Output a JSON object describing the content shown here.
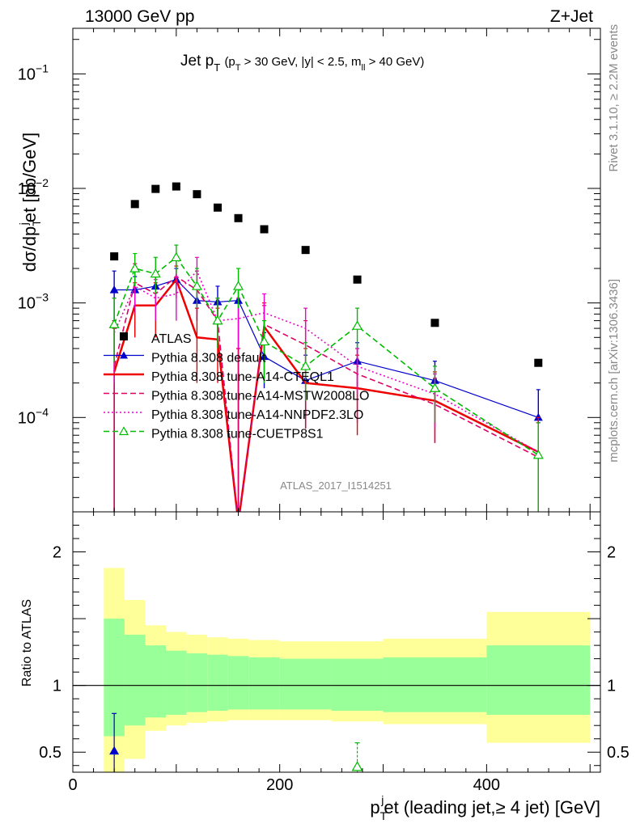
{
  "header": {
    "left": "13000 GeV pp",
    "right": "Z+Jet"
  },
  "side_labels": {
    "rivet": "Rivet 3.1.10, ≥ 2.2M events",
    "mcplots": "mcplots.cern.ch [arXiv:1306.3436]"
  },
  "analysis_id": "ATLAS_2017_I1514251",
  "colors": {
    "data": "#000000",
    "default": "#0000cc",
    "cteql1": "#ee0000",
    "mstw": "#dd0066",
    "nnpdf": "#ee00cc",
    "cuetp8s1": "#00bb00",
    "band_inner": "#99ff99",
    "band_outer": "#ffff99"
  },
  "chart_data": [
    {
      "type": "scatter",
      "title": "Jet p_T (p_T > 30 GeV, |y| < 2.5, m_ll > 40 GeV)",
      "title_parts": {
        "main": "Jet p",
        "main_sub": "T",
        "cut1": "(p",
        "cut1_sub": "T",
        "cut2": " > 30 GeV, |y| < 2.5, m",
        "cut2_sub": "ll",
        "cut3": " > 40 GeV)"
      },
      "ylabel": "dσ/dp_T^j et [pb/GeV]",
      "ylabel_parts": {
        "a": "dσ/dp",
        "sub": "T",
        "sup": "j",
        "b": "et [pb/GeV]"
      },
      "yscale": "log",
      "ylim": [
        1.5e-05,
        0.25
      ],
      "xlim": [
        0,
        510
      ],
      "y_tick_labels": [
        {
          "base": "10",
          "exp": "−1",
          "value": 0.1
        },
        {
          "base": "10",
          "exp": "−2",
          "value": 0.01
        },
        {
          "base": "10",
          "exp": "−3",
          "value": 0.001
        },
        {
          "base": "10",
          "exp": "−4",
          "value": 0.0001
        }
      ],
      "legend_position": "left-middle",
      "series": [
        {
          "key": "data",
          "name": "ATLAS",
          "marker": "square",
          "style": "none",
          "x": [
            40,
            60,
            80,
            100,
            120,
            140,
            160,
            185,
            225,
            275,
            350,
            450
          ],
          "y": [
            0.00255,
            0.0073,
            0.0099,
            0.0104,
            0.0089,
            0.0068,
            0.0055,
            0.0044,
            0.0029,
            0.0016,
            0.00067,
            0.0003
          ]
        },
        {
          "key": "default",
          "name": "Pythia 8.308 default",
          "marker": "triangle-filled",
          "style": "solid",
          "x": [
            40,
            60,
            80,
            100,
            120,
            140,
            160,
            185,
            225,
            275,
            350,
            450
          ],
          "y": [
            0.0013,
            0.0013,
            0.0014,
            0.0016,
            0.00105,
            0.00102,
            0.00105,
            0.00034,
            0.00021,
            0.00031,
            0.00021,
            0.0001
          ],
          "err_up": [
            0.0019,
            0.0017,
            0.0018,
            0.002,
            0.0014,
            0.0014,
            0.0014,
            0.00055,
            0.00035,
            0.00045,
            0.00031,
            0.000175
          ],
          "err_dn": [
            1e-05,
            0.00085,
            0.001,
            0.0012,
            0.0007,
            0.00065,
            1e-05,
            0.00018,
            8e-05,
            0.00018,
            0.00012,
            4.5e-05
          ]
        },
        {
          "key": "cteql1",
          "name": "Pythia 8.308 tune-A14-CTEQL1",
          "marker": "none",
          "style": "solid",
          "x": [
            40,
            60,
            80,
            100,
            120,
            140,
            160,
            185,
            225,
            275,
            350,
            450
          ],
          "y": [
            0.00025,
            0.00095,
            0.00095,
            0.0016,
            0.0005,
            0.00048,
            1.2e-05,
            0.00062,
            0.0002,
            0.00018,
            0.00014,
            5e-05
          ],
          "err_up": [
            0.0006,
            0.0015,
            0.0015,
            0.0021,
            0.0009,
            0.0009,
            0.0004,
            0.001,
            0.0004,
            0.00035,
            0.00025,
            0.0001
          ],
          "err_dn": [
            1e-05,
            0.0005,
            0.0005,
            0.0011,
            0.0002,
            0.0002,
            1e-05,
            0.0003,
            8e-05,
            7e-05,
            6e-05,
            1e-05
          ]
        },
        {
          "key": "mstw",
          "name": "Pythia 8.308 tune-A14-MSTW2008LO",
          "marker": "none",
          "style": "dashed",
          "x": [
            40,
            60,
            80,
            100,
            120,
            140,
            160,
            185,
            225,
            275,
            350,
            450
          ],
          "y": [
            0.00028,
            0.0015,
            0.0012,
            0.0017,
            0.0013,
            0.0007,
            1.2e-05,
            0.00065,
            0.00043,
            0.00024,
            0.00013,
            4.5e-05
          ],
          "err_up": [
            0.0007,
            0.0022,
            0.0018,
            0.0024,
            0.0019,
            0.0011,
            0.0004,
            0.00095,
            0.0007,
            0.0004,
            0.00022,
            9e-05
          ],
          "err_dn": [
            1e-05,
            0.0008,
            0.0007,
            0.0011,
            0.0008,
            0.0004,
            1e-05,
            0.0003,
            0.0002,
            9e-05,
            6e-05,
            1e-05
          ]
        },
        {
          "key": "nnpdf",
          "name": "Pythia 8.308 tune-A14-NNPDF2.3LO",
          "marker": "none",
          "style": "dotted",
          "x": [
            40,
            60,
            80,
            100,
            120,
            140,
            160,
            185,
            225,
            275,
            350,
            450
          ],
          "y": [
            0.00055,
            0.0014,
            0.0011,
            0.0012,
            0.0019,
            0.0007,
            0.00073,
            0.00082,
            0.0006,
            0.00028,
            0.00016,
            5e-05
          ],
          "err_up": [
            0.0011,
            0.0019,
            0.0016,
            0.0017,
            0.0025,
            0.0011,
            0.0011,
            0.0012,
            0.0009,
            0.0004,
            0.00024,
            9e-05
          ],
          "err_dn": [
            0.0002,
            0.0009,
            0.0007,
            0.0007,
            0.0013,
            0.0004,
            0.0004,
            0.0005,
            0.0003,
            0.00016,
            8e-05,
            1e-05
          ]
        },
        {
          "key": "cuetp8s1",
          "name": "Pythia 8.308 tune-CUETP8S1",
          "marker": "triangle-open",
          "style": "dashed",
          "x": [
            40,
            60,
            80,
            100,
            120,
            140,
            160,
            185,
            225,
            275,
            350,
            450
          ],
          "y": [
            0.00065,
            0.002,
            0.0018,
            0.0025,
            0.0014,
            0.0007,
            0.0014,
            0.00046,
            0.00028,
            0.00063,
            0.00018,
            4.7e-05
          ],
          "err_up": [
            0.0011,
            0.0027,
            0.0025,
            0.0032,
            0.002,
            0.0011,
            0.002,
            0.0007,
            0.00045,
            0.0009,
            0.00028,
            9e-05
          ],
          "err_dn": [
            0.0003,
            0.0014,
            0.0012,
            0.0018,
            0.0009,
            0.0004,
            0.0009,
            0.0002,
            0.00014,
            0.0004,
            9e-05,
            1e-05
          ]
        }
      ]
    },
    {
      "type": "scatter",
      "ylabel": "Ratio to ATLAS",
      "xlabel": "p_T^j et (leading jet,≥ 4 jet) [GeV]",
      "xlabel_parts": {
        "a": "p",
        "sub": "T",
        "sup": "j",
        "b": "et (leading jet,≥ 4 jet) [GeV]"
      },
      "xlim": [
        0,
        510
      ],
      "ylim": [
        0.35,
        2.3
      ],
      "x_tick_labels": [
        "0",
        "200",
        "400"
      ],
      "y_tick_labels": [
        "0.5",
        "1",
        "2"
      ],
      "reference_line": 1,
      "bands": {
        "edges": [
          30,
          50,
          70,
          90,
          110,
          130,
          150,
          170,
          200,
          250,
          300,
          400,
          500
        ],
        "inner_hi": [
          1.5,
          1.38,
          1.3,
          1.26,
          1.24,
          1.23,
          1.22,
          1.21,
          1.2,
          1.2,
          1.21,
          1.3
        ],
        "inner_lo": [
          0.62,
          0.7,
          0.76,
          0.78,
          0.8,
          0.81,
          0.82,
          0.82,
          0.82,
          0.81,
          0.8,
          0.78
        ],
        "outer_hi": [
          1.88,
          1.64,
          1.45,
          1.4,
          1.38,
          1.36,
          1.35,
          1.34,
          1.33,
          1.33,
          1.35,
          1.55
        ],
        "outer_lo": [
          0.3,
          0.45,
          0.66,
          0.7,
          0.72,
          0.73,
          0.74,
          0.74,
          0.74,
          0.73,
          0.71,
          0.57
        ]
      },
      "points": [
        {
          "key": "default",
          "x": 40,
          "y": 0.51,
          "err_up": 0.79,
          "err_dn": 0.3
        },
        {
          "key": "cuetp8s1",
          "x": 275,
          "y": 0.39,
          "err_up": 0.57,
          "err_dn": 0.3
        }
      ]
    }
  ]
}
